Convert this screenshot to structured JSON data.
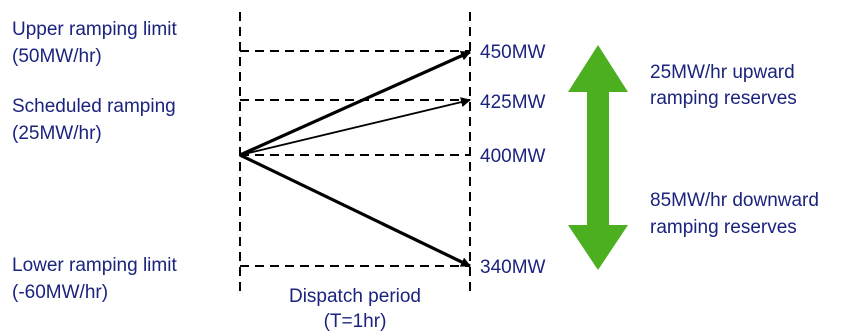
{
  "labels": {
    "upper_line1": "Upper ramping limit",
    "upper_line2": "(50MW/hr)",
    "scheduled_line1": "Scheduled ramping",
    "scheduled_line2": "(25MW/hr)",
    "lower_line1": "Lower ramping limit",
    "lower_line2": "(-60MW/hr)"
  },
  "levels": {
    "l450": "450MW",
    "l425": "425MW",
    "l400": "400MW",
    "l340": "340MW"
  },
  "period": {
    "line1": "Dispatch period",
    "line2": "(T=1hr)"
  },
  "reserves": {
    "up_line1": "25MW/hr upward",
    "up_line2": "ramping reserves",
    "down_line1": "85MW/hr downward",
    "down_line2": "ramping reserves"
  },
  "colors": {
    "text": "#1a237e",
    "arrow": "#4caf1f",
    "lines": "#000000"
  }
}
